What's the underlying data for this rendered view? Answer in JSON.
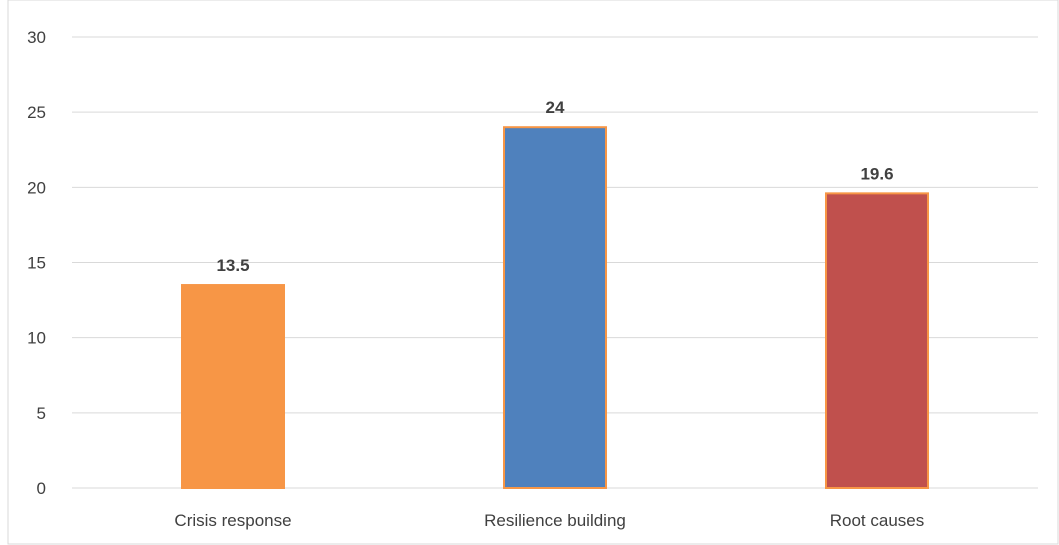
{
  "chart_data": {
    "type": "bar",
    "title": "",
    "xlabel": "",
    "ylabel": "",
    "categories": [
      "Crisis response",
      "Resilience building",
      "Root causes"
    ],
    "values": [
      13.5,
      24,
      19.6
    ],
    "data_labels": [
      "13.5",
      "24",
      "19.6"
    ],
    "ylim": [
      0,
      30
    ],
    "yticks": [
      0,
      5,
      10,
      15,
      20,
      25,
      30
    ],
    "ytick_labels": [
      "0",
      "5",
      "10",
      "15",
      "20",
      "25",
      "30"
    ],
    "bar_colors": [
      "#F79646",
      "#4F81BD",
      "#C0504D"
    ],
    "bar_edge_color": "#F79646",
    "grid": true,
    "grid_color": "#D9D9D9",
    "legend": false
  }
}
